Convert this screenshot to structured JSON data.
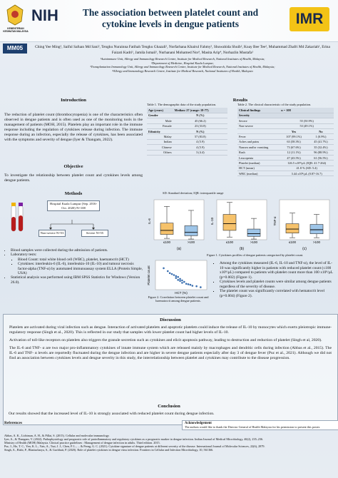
{
  "header": {
    "ministry": "KEMENTERIAN KESIHATAN MALAYSIA",
    "left_logo": "NIH",
    "title": "The association between platelet count and cytokine levels in dengue patients",
    "right_logo": "IMR",
    "code": "MM05"
  },
  "authors": "Ching Yee Ming¹, Saiful Safuan Md Sani², Tengku Nurainna Fatihah Tengku Ghazali², Norfarhana Khairul Fahmy², Shuwahida Shuib², Koay Bee Tee², Muhammad Zhafri Md Zakariah¹, Erina Faizati Kadri¹, Jamila Ismail¹, Nurhanani Mohamed Nor³, Masita Arip⁴, Norhazlin Mustafa¹",
  "affiliations": [
    "¹Autoimmune Unit, Allergy and Immunology Research Centre, Institute for Medical Research, National Institutes of Health, Malaysia;",
    "²Department of Medicine, Hospital Kuala Lumpur;",
    "³Transplantation Immunology Unit, Allergy and Immunology Research Centre, Institute for Medical Research, National Institutes of Health, Malaysia;",
    "⁴Allergy and Immunology Research Centre, Institute for Medical Research, National Institutes of Health, Malaysia"
  ],
  "introduction": {
    "heading": "Introduction",
    "text": "The reduction of platelet count (thrombocytopenia) is one of the characteristics often observed in dengue patients and is often used as one of the monitoring tools in the management of patients (MOH, 2015). Platelets play an important role in the immune response including the regulation of cytokines release during infection. The immune response during an infection, especially the release of cytokines, has been associated with the symptoms and severity of dengue (Iyer & Thangam, 2022)."
  },
  "objective": {
    "heading": "Objective",
    "text": "To investigate the relationship between platelet count and cytokines levels among dengue patients."
  },
  "methods": {
    "heading": "Methods",
    "flow": {
      "top": "Hospital Kuala Lumpur (Sep. 2016-Oct. 2020) N=108",
      "left": "Non-severe N=53",
      "right": "Severe N=55"
    },
    "bullets": [
      {
        "text": "Blood samples were collected during the admission of patients."
      },
      {
        "text": "Laboratory tests:",
        "sub": [
          "Blood Count: total white blood cell (WBC), platelet, haematocrit (HCT)",
          "Cytokines: interleukin-6 (IL-6), interleukin-10 (IL-10) and tumour necrosis factor-alpha (TNF-α) by automated immunoassay system ELLA (Protein Simple, USA)"
        ]
      },
      {
        "text": "Statistical analysis was performed using IBM SPSS Statistics for Windows (Version 26.0)."
      }
    ]
  },
  "results": {
    "heading": "Results",
    "table1": {
      "caption": "Table 1. The demographic data of the study population.",
      "header": [
        "Age (years)",
        "Median: 27 (range: 18-77)"
      ],
      "rows": [
        [
          "Gender",
          "N (%)"
        ],
        [
          "Male",
          "45 (66.2)"
        ],
        [
          "Female",
          "23 (33.8)"
        ],
        [
          "Ethnicity",
          "N (%)"
        ],
        [
          "Malay",
          "57 (83.8)"
        ],
        [
          "Indian",
          "4 (5.9)"
        ],
        [
          "Chinese",
          "4 (5.9)"
        ],
        [
          "Others",
          "3 (4.4)"
        ]
      ]
    },
    "table2": {
      "caption": "Table 2. The clinical characteristic of the study population.",
      "header": [
        "Clinical findings",
        "n = 108"
      ],
      "sections": [
        {
          "title": "Severity",
          "rows": [
            [
              "Severe",
              "55 (50.9%)"
            ],
            [
              "Non-severe",
              "53 (49.1%)"
            ]
          ]
        },
        {
          "columns": [
            "Yes",
            "No"
          ],
          "rows": [
            [
              "Fever",
              "107 (99.1%)",
              "1 (0.9%)"
            ],
            [
              "Aches and pains",
              "63 (58.3%)",
              "45 (41.7%)"
            ],
            [
              "Nausea and/or vomiting",
              "73 (67.6%)",
              "35 (32.4%)"
            ],
            [
              "Rash",
              "12 (11.1%)",
              "96 (88.9%)"
            ],
            [
              "Leucopenia",
              "47 (43.5%)",
              "61 (56.5%)"
            ]
          ]
        },
        {
          "rows": [
            [
              "Platelet (median)",
              "126.5 x10⁹/µL (IQR: 41.7-264)"
            ],
            [
              "HCT (mean)",
              "41.8 % (SD: 5.4)"
            ],
            [
              "WBC (median)",
              "3.44 x10⁹/µL (0.87-16.7)"
            ]
          ]
        }
      ]
    },
    "note": "SD: Standard deviation; IQR: interquartile range",
    "figure1": {
      "type": "box",
      "caption": "Figure 1. Cytokines profiles of dengue patients categorised by platelet count.",
      "panels": [
        {
          "label": "(a)",
          "title": "IL-6",
          "ylim": [
            0,
            60
          ],
          "boxes": [
            {
              "name": "≤100",
              "color": "#f6c26b",
              "min": 2,
              "q1": 8,
              "median": 14,
              "q3": 25,
              "max": 50
            },
            {
              "name": ">100",
              "color": "#9ec5e8",
              "min": 1,
              "q1": 6,
              "median": 11,
              "q3": 21,
              "max": 44
            }
          ]
        },
        {
          "label": "(b)",
          "title": "IL-10",
          "ylim": [
            0,
            60
          ],
          "boxes": [
            {
              "name": "≤100",
              "color": "#f6c26b",
              "min": 4,
              "q1": 14,
              "median": 24,
              "q3": 38,
              "max": 56
            },
            {
              "name": ">100",
              "color": "#9ec5e8",
              "min": 1,
              "q1": 5,
              "median": 9,
              "q3": 16,
              "max": 32
            }
          ]
        },
        {
          "label": "(c)",
          "title": "TNF-α",
          "ylim": [
            0,
            60
          ],
          "boxes": [
            {
              "name": "≤100",
              "color": "#f6c26b",
              "min": 3,
              "q1": 10,
              "median": 16,
              "q3": 24,
              "max": 40
            },
            {
              "name": ">100",
              "color": "#9ec5e8",
              "min": 3,
              "q1": 9,
              "median": 15,
              "q3": 23,
              "max": 38
            }
          ]
        }
      ]
    },
    "figure2": {
      "type": "scatter",
      "caption": "Figure 2. Correlation between platelet count and haematocrit among dengue patients.",
      "xlabel": "HCT (%)",
      "ylabel": "Platelet count",
      "xlim": [
        30,
        55
      ],
      "ylim": [
        0,
        300
      ],
      "color": "#3a6fb0",
      "x": [
        34,
        36,
        37,
        38,
        39,
        40,
        40,
        41,
        41,
        42,
        42,
        43,
        43,
        44,
        45,
        46,
        47,
        48,
        50,
        52
      ],
      "y": [
        220,
        190,
        170,
        160,
        150,
        140,
        120,
        130,
        100,
        110,
        90,
        95,
        70,
        80,
        60,
        55,
        50,
        40,
        35,
        25
      ]
    },
    "findings": [
      "Among the cytokines measured (IL-6, IL-10 and TNF-α), the level of IL-10 was significantly higher in patients with reduced platelet count (≤100 x10⁹/µL) compared to patients with platelet count more than 100 x10⁹/µL (p=0.002) (Figure 1).",
      "Cytokines levels and platelet counts were similar among dengue patients regardless of the severity of disease.",
      "The platelet count was significantly correlated with hematocrit level (p=0.004) (Figure 2)."
    ]
  },
  "discussion": {
    "heading": "Discussion",
    "paragraphs": [
      "Platelets are activated during viral infection such as dengue. Interaction of activated platelets and apoptotic platelets could induce the release of IL-10 by monocytes which exerts pleiotropic immune-regulatory response (Singh et al., 2020). This is reflected in our study that samples with lower platelet count had higher levels of IL-10.",
      "Activation of toll-like receptors on platelets also triggers the granule secretion such as cytokines and elicit apoptosis pathway, leading to destruction and reduction of platelet (Singh et al, 2020).",
      "The IL-6 and TNF- α are two major pro-inflammatory cytokines of innate immune system which are released mainly by macrophages and dendritic cells during infection (Abbas et al., 2015). The IL-6 and TNF- α levels are reportedly fluctuated during the dengue infection and are higher in severe dengue patients especially after day 3 of dengue fever (Puc et al., 2021). Although we did not find an association between cytokines levels and dengue severity in this study, the interrelationship between platelet and cytokines may contribute to the disease progression."
    ]
  },
  "conclusion": {
    "heading": "Conclusion",
    "text": "Our results showed that the increased level of IL-10 is strongly associated with reduced platelet count during dengue infection."
  },
  "references": {
    "heading": "References",
    "items": [
      "Abbas, A. K., Lichtman, A. H., & Pillai, S. (2015). Cellular and molecular immunology.",
      "Iyer, A., & Thangam, V. (2022). Pathophysiology and prognostic role of proinflammatory and regulatory cytokines as a prognostic marker in dengue infection. Indian Journal of Medical Microbiology, 40(2), 235–236.",
      "Ministry of Health (MOH) Malaysia. Clinical practice guidelines : Management of dengue infection in adults. Third edition. 2015.",
      "Puc, I., Ho, T. C., Yen, K. L., Vats, A., Tsai, J. J., Chen, P. L., ... & Perng, G. C. (2021). Cytokine signature of dengue patients at different severity of the disease. International Journal of Molecular Sciences, 22(6), 2879.",
      "Singh, A., Bisht, P., Bhattacharya, S., & Guchhait, P. (2020). Role of platelet cytokines in dengue virus infection. Frontiers in Cellular and Infection Microbiology, 10, 561366."
    ]
  },
  "acknowledgement": {
    "heading": "Acknowledgement",
    "text": "The authors would like to thank the Director General of Health Malaysia for his permission to present this poster."
  }
}
